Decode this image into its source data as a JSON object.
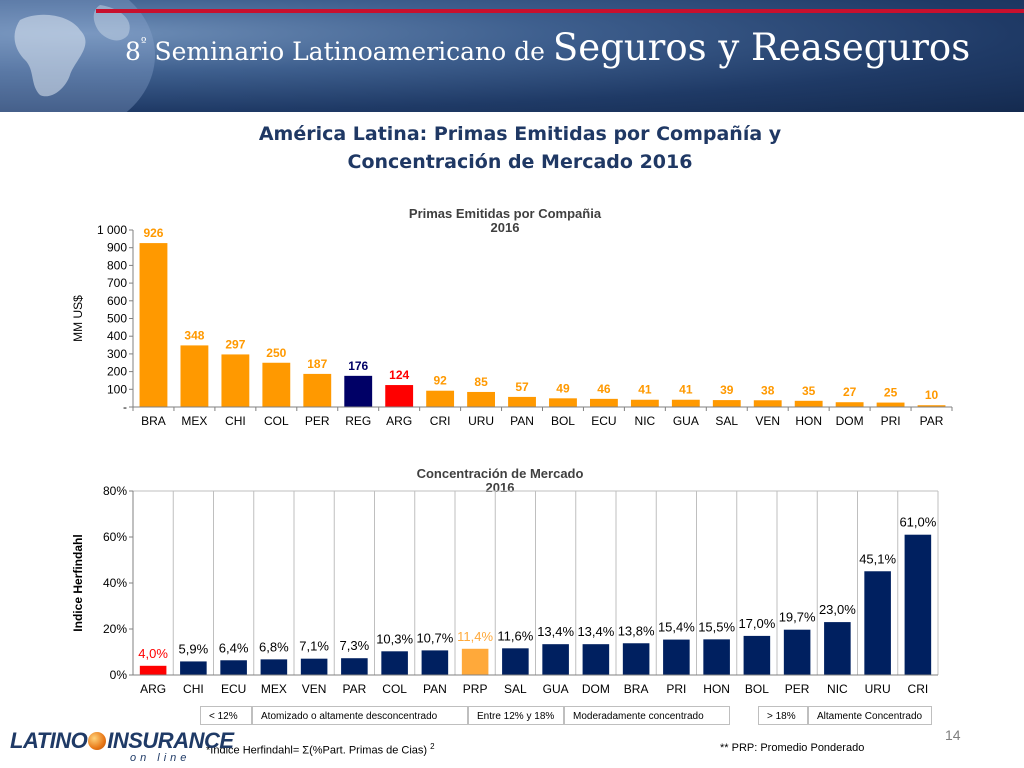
{
  "header": {
    "title_part1": "8",
    "title_sup": "º",
    "title_part2": " Seminario Latinoamericano de ",
    "title_part3": "Seguros y Reaseguros"
  },
  "main_title": {
    "line1": "América Latina: Primas Emitidas por Compañía y",
    "line2": "Concentración de Mercado 2016"
  },
  "chart_data": [
    {
      "type": "bar",
      "title": "Primas Emitidas por Compañia",
      "subtitle": "2016",
      "xlabel": "",
      "ylabel": "MM US$",
      "ylim": [
        0,
        1000
      ],
      "yticks": [
        0,
        100,
        200,
        300,
        400,
        500,
        600,
        700,
        800,
        900,
        1000
      ],
      "ytick_labels": [
        "-",
        "100",
        "200",
        "300",
        "400",
        "500",
        "600",
        "700",
        "800",
        "900",
        "1 000"
      ],
      "categories": [
        "BRA",
        "MEX",
        "CHI",
        "COL",
        "PER",
        "REG",
        "ARG",
        "CRI",
        "URU",
        "PAN",
        "BOL",
        "ECU",
        "NIC",
        "GUA",
        "SAL",
        "VEN",
        "HON",
        "DOM",
        "PRI",
        "PAR"
      ],
      "values": [
        926,
        348,
        297,
        250,
        187,
        176,
        124,
        92,
        85,
        57,
        49,
        46,
        41,
        41,
        39,
        38,
        35,
        27,
        25,
        10
      ],
      "value_labels": [
        "926",
        "348",
        "297",
        "250",
        "187",
        "176",
        "124",
        "92",
        "85",
        "57",
        "49",
        "46",
        "41",
        "41",
        "39",
        "38",
        "35",
        "27",
        "25",
        "10"
      ],
      "colors": [
        "#ff9900",
        "#ff9900",
        "#ff9900",
        "#ff9900",
        "#ff9900",
        "#000066",
        "#ff0000",
        "#ff9900",
        "#ff9900",
        "#ff9900",
        "#ff9900",
        "#ff9900",
        "#ff9900",
        "#ff9900",
        "#ff9900",
        "#ff9900",
        "#ff9900",
        "#ff9900",
        "#ff9900",
        "#ff9900"
      ],
      "grid": false
    },
    {
      "type": "bar",
      "title": "Concentración de Mercado",
      "subtitle": "2016",
      "xlabel": "",
      "ylabel": "Indice Herfindahl",
      "ylim": [
        0,
        80
      ],
      "yticks": [
        0,
        20,
        40,
        60,
        80
      ],
      "ytick_labels": [
        "0%",
        "20%",
        "40%",
        "60%",
        "80%"
      ],
      "categories": [
        "ARG",
        "CHI",
        "ECU",
        "MEX",
        "VEN",
        "PAR",
        "COL",
        "PAN",
        "PRP",
        "SAL",
        "GUA",
        "DOM",
        "BRA",
        "PRI",
        "HON",
        "BOL",
        "PER",
        "NIC",
        "URU",
        "CRI"
      ],
      "values": [
        4.0,
        5.9,
        6.4,
        6.8,
        7.1,
        7.3,
        10.3,
        10.7,
        11.4,
        11.6,
        13.4,
        13.4,
        13.8,
        15.4,
        15.5,
        17.0,
        19.7,
        23.0,
        45.1,
        61.0
      ],
      "value_labels": [
        "4,0%",
        "5,9%",
        "6,4%",
        "6,8%",
        "7,1%",
        "7,3%",
        "10,3%",
        "10,7%",
        "11,4%",
        "11,6%",
        "13,4%",
        "13,4%",
        "13,8%",
        "15,4%",
        "15,5%",
        "17,0%",
        "19,7%",
        "23,0%",
        "45,1%",
        "61,0%"
      ],
      "colors": [
        "#ff0000",
        "#002060",
        "#002060",
        "#002060",
        "#002060",
        "#002060",
        "#002060",
        "#002060",
        "#ffa93a",
        "#002060",
        "#002060",
        "#002060",
        "#002060",
        "#002060",
        "#002060",
        "#002060",
        "#002060",
        "#002060",
        "#002060",
        "#002060"
      ],
      "label_colors": [
        "#ff0000",
        "#000000",
        "#000000",
        "#000000",
        "#000000",
        "#000000",
        "#000000",
        "#000000",
        "#ffa93a",
        "#000000",
        "#000000",
        "#000000",
        "#000000",
        "#000000",
        "#000000",
        "#000000",
        "#000000",
        "#000000",
        "#000000",
        "#000000"
      ],
      "grid": "vertical"
    }
  ],
  "legend": {
    "items": [
      {
        "range": "< 12%",
        "desc": "Atomizado o altamente desconcentrado"
      },
      {
        "range": "Entre 12% y 18%",
        "desc": "Moderadamente concentrado"
      },
      {
        "range": "> 18%",
        "desc": "Altamente Concentrado"
      }
    ]
  },
  "footnotes": {
    "formula": "*Indice Herfindahl= Σ(%Part. Primas  de Cias)",
    "formula_sup": "2",
    "prp": "** PRP: Promedio Ponderado"
  },
  "page_number": "14",
  "logo": {
    "text_left": "LATINO",
    "text_right": "INSURANCE",
    "subtitle": "on line"
  },
  "colors": {
    "header_blue": "#1f3a66",
    "accent_red": "#c8102e",
    "title_blue": "#1f3864"
  }
}
